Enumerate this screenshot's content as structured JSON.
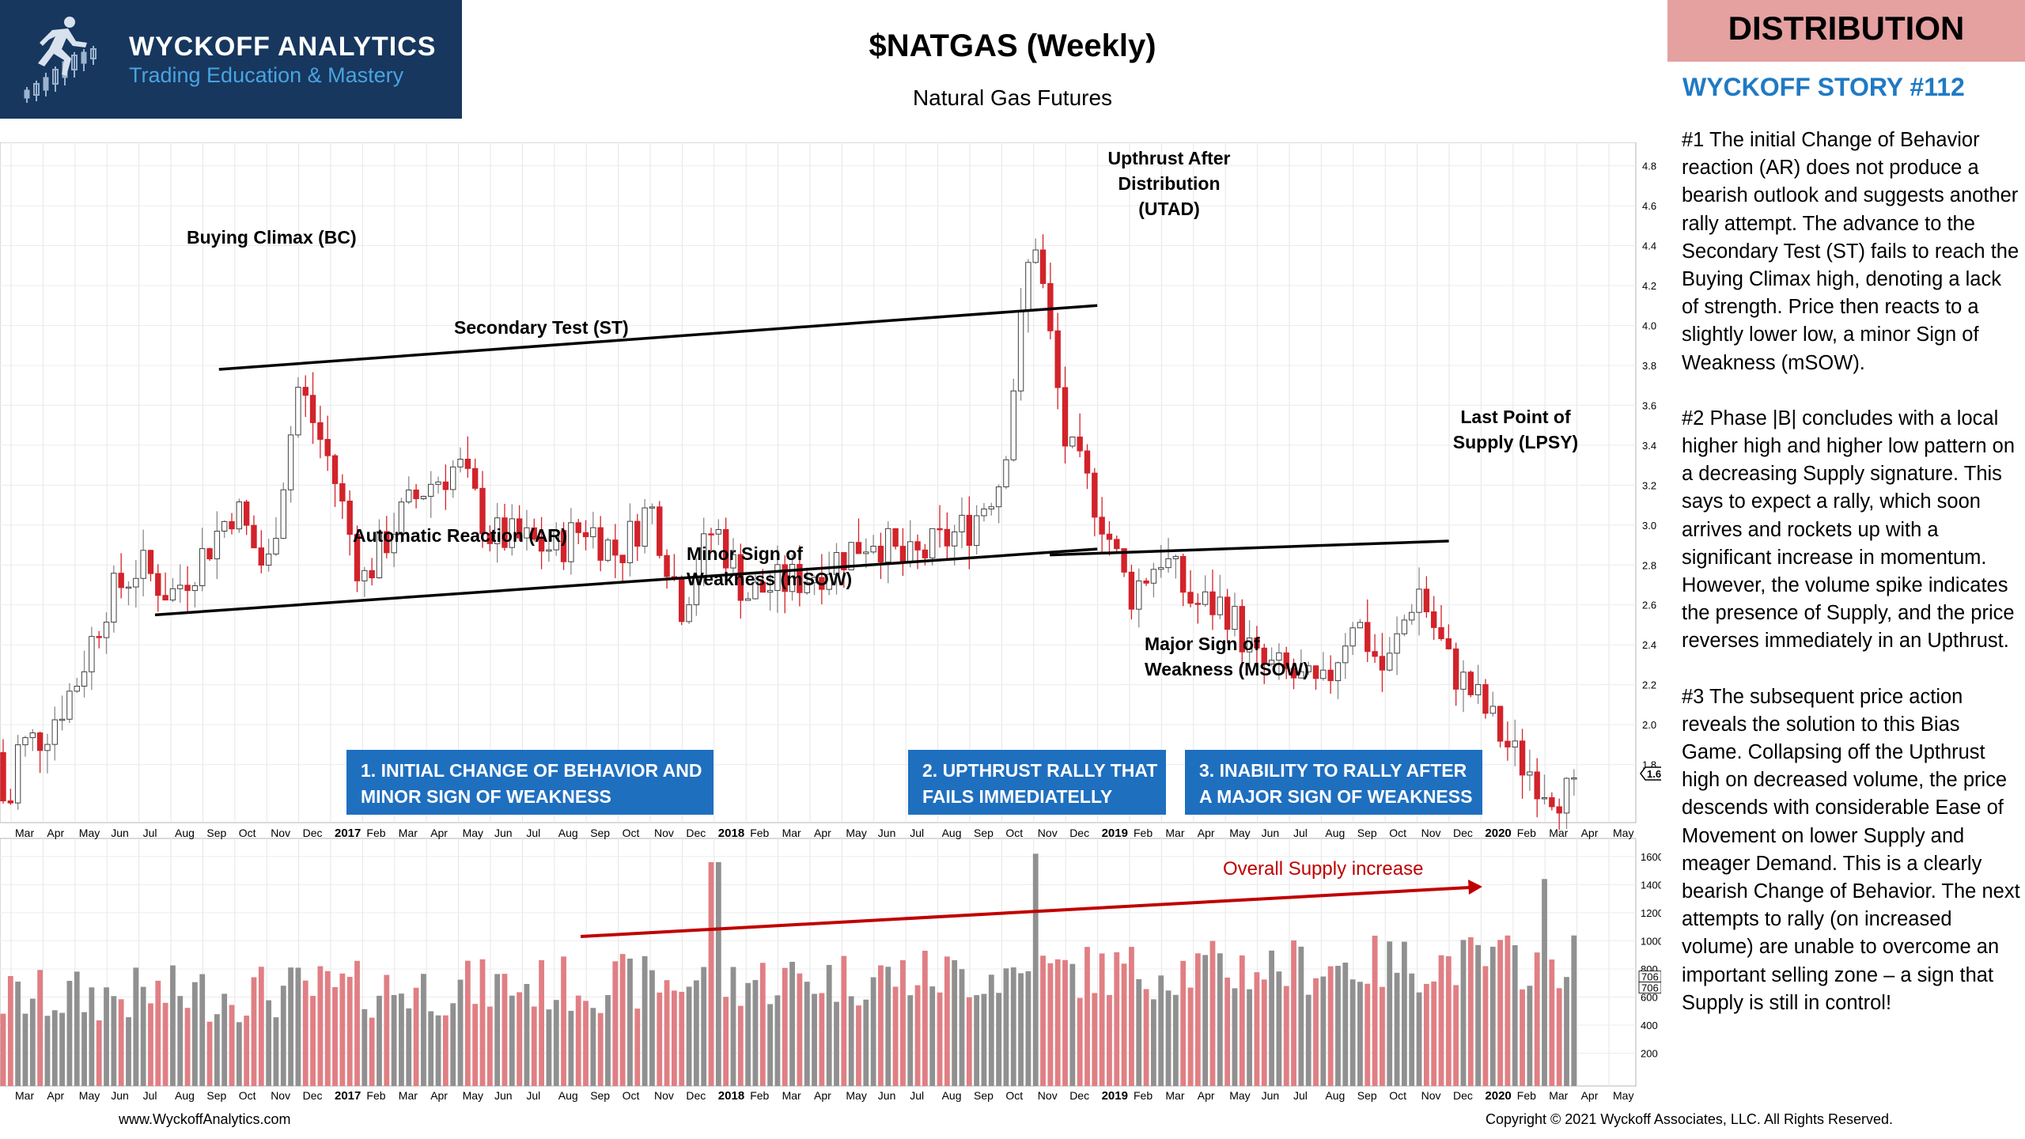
{
  "header": {
    "logo_title": "WYCKOFF ANALYTICS",
    "logo_subtitle": "Trading Education & Mastery",
    "chart_title": "$NATGAS (Weekly)",
    "chart_subtitle": "Natural Gas Futures",
    "badge": "DISTRIBUTION",
    "story": "WYCKOFF STORY #112"
  },
  "narrative": [
    "#1 The initial Change of Behavior reaction (AR) does not produce a bearish outlook and suggests another rally attempt.  The advance to the Secondary Test (ST) fails to reach the Buying Climax high, denoting a lack of strength. Price then reacts  to a slightly lower low, a minor Sign of Weakness (mSOW).",
    "#2 Phase |B| concludes with a local higher high and higher low pattern on a decreasing Supply signature. This says to expect a rally, which soon arrives and rockets up with a significant increase in momentum. However, the volume spike indicates the presence of Supply, and the price reverses immediately in an Upthrust.",
    "#3 The subsequent price action reveals the solution to this Bias Game. Collapsing off the Upthrust high on decreased volume, the price descends with considerable Ease of Movement on lower Supply and meager Demand. This is a clearly bearish Change of Behavior. The next attempts to rally (on increased volume) are unable to overcome an important selling zone – a sign that Supply is still in control!"
  ],
  "footer": {
    "website": "www.WyckoffAnalytics.com",
    "copyright": "Copyright © 2021 Wyckoff Associates, LLC. All Rights Reserved."
  },
  "colors": {
    "up": "#8a8a8a",
    "down": "#d2232a",
    "up_volume": "#909090",
    "down_volume": "#e07f84",
    "box": "#1f6fbf",
    "supply_arrow": "#c00000",
    "navy": "#17375e"
  },
  "chart_data": {
    "type": "candlestick",
    "title": "$NATGAS (Weekly)",
    "subtitle": "Natural Gas Futures",
    "price_axis": {
      "ticks": [
        "4.8",
        "4.6",
        "4.4",
        "4.2",
        "4.0",
        "3.8",
        "3.6",
        "3.4",
        "3.2",
        "3.0",
        "2.8",
        "2.6",
        "2.4",
        "2.2",
        "2.0",
        "1.8"
      ],
      "ylim": [
        1.5,
        4.9
      ],
      "last_price_label": "1.62"
    },
    "volume_axis": {
      "ticks": [
        "1600",
        "1400",
        "1200",
        "1000",
        "800",
        "600",
        "400",
        "200"
      ],
      "ylim": [
        0,
        1650
      ],
      "marker_labels": [
        "706",
        "706"
      ]
    },
    "x_axis": {
      "month_ticks": [
        "Mar",
        "Apr",
        "May",
        "Jun",
        "Jul",
        "Aug",
        "Sep",
        "Oct",
        "Nov",
        "Dec",
        "2017",
        "Feb",
        "Mar",
        "Apr",
        "May",
        "Jun",
        "Jul",
        "Aug",
        "Sep",
        "Oct",
        "Nov",
        "Dec",
        "2018",
        "Feb",
        "Mar",
        "Apr",
        "May",
        "Jun",
        "Jul",
        "Aug",
        "Sep",
        "Oct",
        "Nov",
        "Dec",
        "2019",
        "Feb",
        "Mar",
        "Apr",
        "May",
        "Jun",
        "Jul",
        "Aug",
        "Sep",
        "Oct",
        "Nov",
        "Dec",
        "2020",
        "Feb",
        "Mar",
        "Apr",
        "May"
      ]
    },
    "close_path": [
      [
        "2016-03",
        1.86
      ],
      [
        "2016-04",
        1.95
      ],
      [
        "2016-05",
        2.2
      ],
      [
        "2016-06",
        2.62
      ],
      [
        "2016-07",
        2.8
      ],
      [
        "2016-08",
        2.65
      ],
      [
        "2016-09",
        2.85
      ],
      [
        "2016-10",
        3.1
      ],
      [
        "2016-11",
        2.75
      ],
      [
        "2016-12",
        3.7
      ],
      [
        "2017-01",
        3.3
      ],
      [
        "2017-02",
        2.72
      ],
      [
        "2017-03",
        3.0
      ],
      [
        "2017-04",
        3.2
      ],
      [
        "2017-05",
        3.3
      ],
      [
        "2017-06",
        2.95
      ],
      [
        "2017-07",
        2.92
      ],
      [
        "2017-08",
        2.88
      ],
      [
        "2017-09",
        3.0
      ],
      [
        "2017-10",
        2.85
      ],
      [
        "2017-11",
        3.1
      ],
      [
        "2017-12",
        2.6
      ],
      [
        "2018-01",
        3.0
      ],
      [
        "2018-02",
        2.65
      ],
      [
        "2018-03",
        2.7
      ],
      [
        "2018-04",
        2.75
      ],
      [
        "2018-05",
        2.85
      ],
      [
        "2018-06",
        2.95
      ],
      [
        "2018-07",
        2.8
      ],
      [
        "2018-08",
        2.9
      ],
      [
        "2018-09",
        3.0
      ],
      [
        "2018-10",
        3.25
      ],
      [
        "2018-11",
        4.5
      ],
      [
        "2018-12",
        3.4
      ],
      [
        "2019-01",
        3.1
      ],
      [
        "2019-02",
        2.65
      ],
      [
        "2019-03",
        2.85
      ],
      [
        "2019-04",
        2.6
      ],
      [
        "2019-05",
        2.6
      ],
      [
        "2019-06",
        2.3
      ],
      [
        "2019-07",
        2.25
      ],
      [
        "2019-08",
        2.15
      ],
      [
        "2019-09",
        2.55
      ],
      [
        "2019-10",
        2.25
      ],
      [
        "2019-11",
        2.7
      ],
      [
        "2019-12",
        2.3
      ],
      [
        "2020-01",
        2.1
      ],
      [
        "2020-02",
        1.85
      ],
      [
        "2020-03",
        1.7
      ],
      [
        "2020-04",
        1.62
      ]
    ],
    "trendlines": [
      {
        "from": [
          "2016-08",
          2.55
        ],
        "to": [
          "2018-12",
          2.88
        ],
        "label": "lower support line"
      },
      {
        "from": [
          "2016-10",
          3.78
        ],
        "to": [
          "2018-12",
          4.1
        ],
        "label": "upper resistance line"
      },
      {
        "from": [
          "2018-12",
          2.85
        ],
        "to": [
          "2019-11",
          2.92
        ],
        "label": "upper line extension"
      }
    ],
    "annotations": [
      {
        "text": "Buying Climax (BC)",
        "date": "2016-12"
      },
      {
        "text": "Secondary Test (ST)",
        "date": "2017-05"
      },
      {
        "text": "Automatic Reaction (AR)",
        "date": "2017-05"
      },
      {
        "text": "Minor Sign of Weakness (mSOW)",
        "date": "2018-01"
      },
      {
        "text": "Upthrust After Distribution (UTAD)",
        "date": "2018-11"
      },
      {
        "text": "Last Point of Supply (LPSY)",
        "date": "2019-11"
      },
      {
        "text": "Major Sign of Weakness (MSOW)",
        "date": "2019-03"
      }
    ],
    "phase_boxes": [
      [
        "1. INITIAL CHANGE OF BEHAVIOR AND",
        "MINOR SIGN OF WEAKNESS"
      ],
      [
        "2. UPTHRUST RALLY THAT",
        "FAILS IMMEDIATELLY"
      ],
      [
        "3. INABILITY TO RALLY AFTER",
        "A MAJOR SIGN OF WEAKNESS"
      ]
    ],
    "volume_annotation": "Overall Supply increase",
    "volume_peaks": [
      [
        "2018-01",
        1560
      ],
      [
        "2018-11",
        1620
      ],
      [
        "2020-03",
        1440
      ]
    ]
  }
}
